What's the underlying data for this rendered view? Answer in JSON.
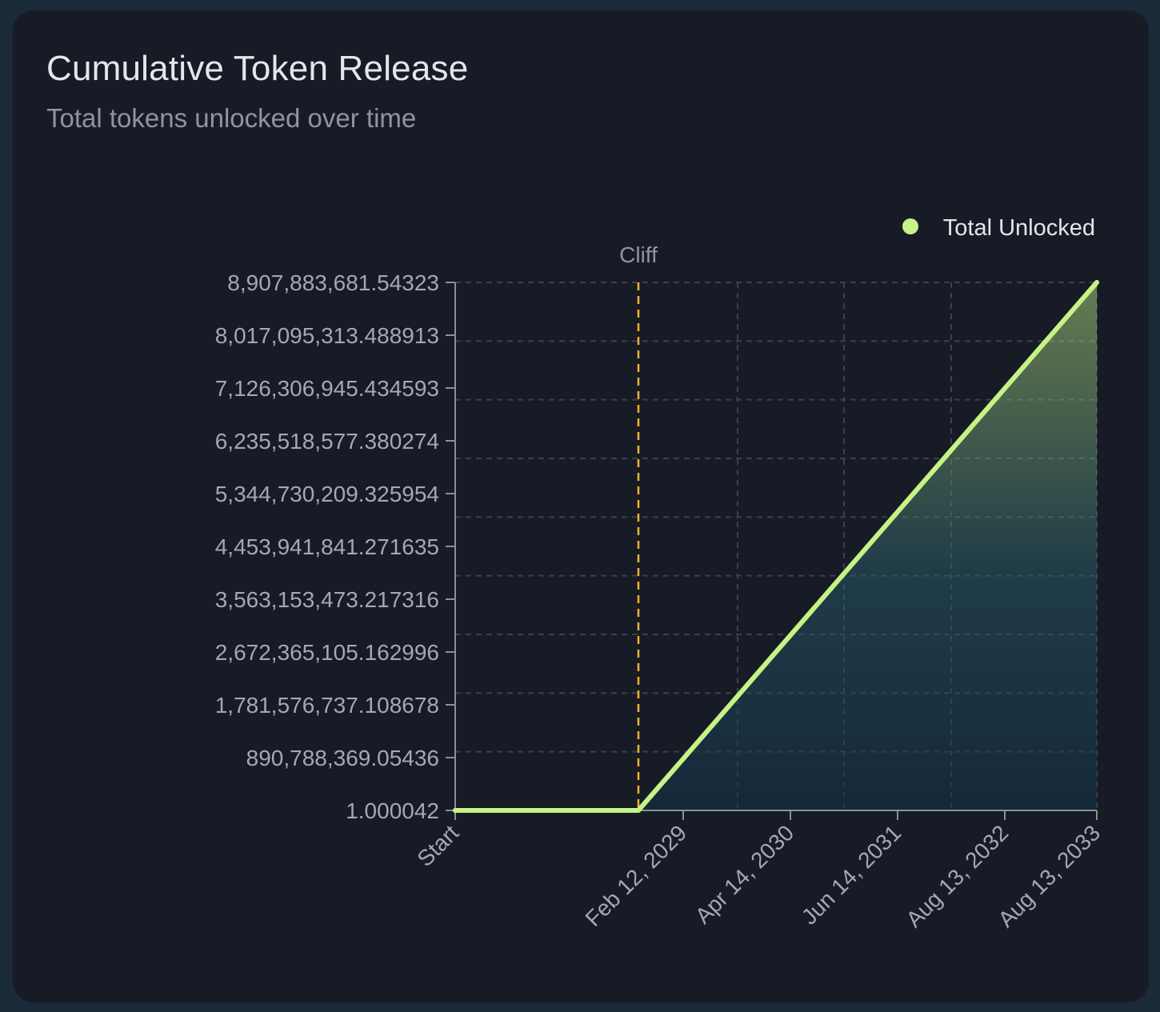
{
  "card": {
    "title": "Cumulative Token Release",
    "subtitle": "Total tokens unlocked over time"
  },
  "chart_data": {
    "type": "area",
    "title": "Cumulative Token Release",
    "subtitle": "Total tokens unlocked over time",
    "xlabel": "",
    "ylabel": "",
    "x_ticks": [
      "Start",
      "Feb 12, 2029",
      "Apr 14, 2030",
      "Jun 14, 2031",
      "Aug 13, 2032",
      "Aug 13, 2033"
    ],
    "y_ticks": [
      "1.000042",
      "890,788,369.05436",
      "1,781,576,737.108678",
      "2,672,365,105.162996",
      "3,563,153,473.217316",
      "4,453,941,841.271635",
      "5,344,730,209.325954",
      "6,235,518,577.380274",
      "7,126,306,945.434593",
      "8,017,095,313.488913",
      "8,907,883,681.54323"
    ],
    "ylim": [
      1.000042,
      8907883681.54323
    ],
    "series": [
      {
        "name": "Total Unlocked",
        "color": "#c6f384",
        "points": [
          {
            "x": "Start",
            "y": 1.000042
          },
          {
            "x": "Cliff",
            "y": 1.000042
          },
          {
            "x": "Aug 13, 2033",
            "y": 8907883681.54323
          }
        ]
      }
    ],
    "annotations": [
      {
        "type": "vertical-line",
        "label": "Cliff",
        "color": "#f2b333"
      }
    ],
    "grid": true,
    "legend": "top-right"
  }
}
